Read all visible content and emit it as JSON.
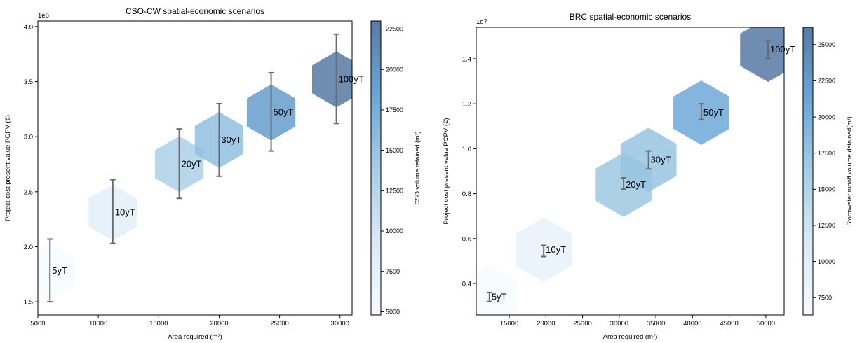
{
  "chart_data": [
    {
      "type": "hexbin",
      "title": "CSO-CW spatial-economic scenarios",
      "xlabel": "Area required (m²)",
      "ylabel": "Project cost present value PCPV (€)",
      "y_offset_label": "1e6",
      "xlim": [
        5000,
        31000
      ],
      "ylim": [
        1.38,
        4.05
      ],
      "xticks": [
        5000,
        10000,
        15000,
        20000,
        25000,
        30000
      ],
      "xtick_labels": [
        "5000",
        "10000",
        "15000",
        "20000",
        "25000",
        "30000"
      ],
      "yticks": [
        1.5,
        2.0,
        2.5,
        3.0,
        3.5,
        4.0
      ],
      "ytick_labels": [
        "1.5",
        "2.0",
        "2.5",
        "3.0",
        "3.5",
        "4.0"
      ],
      "colorbar": {
        "label": "CSO volume retained (m³)",
        "range": [
          4800,
          23000
        ],
        "ticks": [
          5000,
          7500,
          10000,
          12500,
          15000,
          17500,
          20000,
          22500
        ],
        "tick_labels": [
          "5000",
          "7500",
          "10000",
          "12500",
          "15000",
          "17500",
          "20000",
          "22500"
        ]
      },
      "points": [
        {
          "label": "5yT",
          "x": 6000,
          "y": 1.78,
          "err_low": 1.5,
          "err_high": 2.07,
          "color_value": 4900
        },
        {
          "label": "10yT",
          "x": 11200,
          "y": 2.31,
          "err_low": 2.03,
          "err_high": 2.61,
          "color_value": 8200
        },
        {
          "label": "20yT",
          "x": 16700,
          "y": 2.75,
          "err_low": 2.44,
          "err_high": 3.07,
          "color_value": 13500
        },
        {
          "label": "30yT",
          "x": 20000,
          "y": 2.97,
          "err_low": 2.64,
          "err_high": 3.3,
          "color_value": 15500
        },
        {
          "label": "50yT",
          "x": 24300,
          "y": 3.22,
          "err_low": 2.87,
          "err_high": 3.58,
          "color_value": 19500
        },
        {
          "label": "100yT",
          "x": 29700,
          "y": 3.52,
          "err_low": 3.12,
          "err_high": 3.93,
          "color_value": 23000
        }
      ]
    },
    {
      "type": "hexbin",
      "title": "BRC spatial-economic scenarios",
      "xlabel": "Area required (m²)",
      "ylabel": "Project cost present value PCPV (€)",
      "y_offset_label": "1e7",
      "xlim": [
        10500,
        52500
      ],
      "ylim": [
        0.26,
        1.54
      ],
      "xticks": [
        15000,
        20000,
        25000,
        30000,
        35000,
        40000,
        45000,
        50000
      ],
      "xtick_labels": [
        "15000",
        "20000",
        "25000",
        "30000",
        "35000",
        "40000",
        "45000",
        "50000"
      ],
      "yticks": [
        0.4,
        0.6,
        0.8,
        1.0,
        1.2,
        1.4
      ],
      "ytick_labels": [
        "0.4",
        "0.6",
        "0.8",
        "1.0",
        "1.2",
        "1.4"
      ],
      "colorbar": {
        "label": "Stormwater runoff volume detained(m³)",
        "range": [
          6300,
          26200
        ],
        "ticks": [
          7500,
          10000,
          12500,
          15000,
          17500,
          20000,
          22500,
          25000
        ],
        "tick_labels": [
          "7500",
          "10000",
          "12500",
          "15000",
          "17500",
          "20000",
          "22500",
          "25000"
        ]
      },
      "points": [
        {
          "label": "5yT",
          "x": 12300,
          "y": 0.34,
          "err_low": 0.32,
          "err_high": 0.36,
          "color_value": 6400
        },
        {
          "label": "10yT",
          "x": 19700,
          "y": 0.55,
          "err_low": 0.52,
          "err_high": 0.57,
          "color_value": 9000
        },
        {
          "label": "20yT",
          "x": 30600,
          "y": 0.84,
          "err_low": 0.82,
          "err_high": 0.87,
          "color_value": 17000
        },
        {
          "label": "30yT",
          "x": 34000,
          "y": 0.95,
          "err_low": 0.91,
          "err_high": 0.99,
          "color_value": 17500
        },
        {
          "label": "50yT",
          "x": 41200,
          "y": 1.16,
          "err_low": 1.13,
          "err_high": 1.2,
          "color_value": 21000
        },
        {
          "label": "100yT",
          "x": 50300,
          "y": 1.44,
          "err_low": 1.4,
          "err_high": 1.48,
          "color_value": 26200
        }
      ]
    }
  ]
}
